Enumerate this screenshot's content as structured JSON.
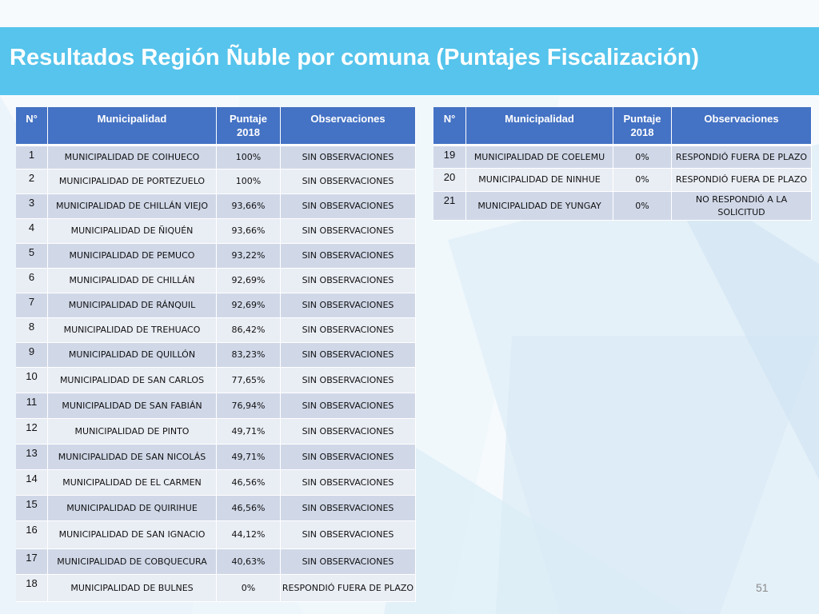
{
  "slide": {
    "title": "Resultados Región Ñuble por comuna (Puntajes Fiscalización)",
    "page_number": "51"
  },
  "left_table": {
    "headers": {
      "n": "N°",
      "municipalidad": "Municipalidad",
      "puntaje": "Puntaje 2018",
      "observaciones": "Observaciones"
    },
    "rows": [
      {
        "n": "1",
        "municipalidad": "MUNICIPALIDAD DE COIHUECO",
        "puntaje": "100%",
        "observaciones": "SIN OBSERVACIONES"
      },
      {
        "n": "2",
        "municipalidad": "MUNICIPALIDAD DE PORTEZUELO",
        "puntaje": "100%",
        "observaciones": "SIN OBSERVACIONES"
      },
      {
        "n": "3",
        "municipalidad": "MUNICIPALIDAD DE CHILLÁN VIEJO",
        "puntaje": "93,66%",
        "observaciones": "SIN OBSERVACIONES"
      },
      {
        "n": "4",
        "municipalidad": "MUNICIPALIDAD DE ÑIQUÉN",
        "puntaje": "93,66%",
        "observaciones": "SIN OBSERVACIONES"
      },
      {
        "n": "5",
        "municipalidad": "MUNICIPALIDAD DE PEMUCO",
        "puntaje": "93,22%",
        "observaciones": "SIN OBSERVACIONES"
      },
      {
        "n": "6",
        "municipalidad": "MUNICIPALIDAD DE CHILLÁN",
        "puntaje": "92,69%",
        "observaciones": "SIN OBSERVACIONES"
      },
      {
        "n": "7",
        "municipalidad": "MUNICIPALIDAD DE RÁNQUIL",
        "puntaje": "92,69%",
        "observaciones": "SIN OBSERVACIONES"
      },
      {
        "n": "8",
        "municipalidad": "MUNICIPALIDAD DE TREHUACO",
        "puntaje": "86,42%",
        "observaciones": "SIN OBSERVACIONES"
      },
      {
        "n": "9",
        "municipalidad": "MUNICIPALIDAD DE QUILLÓN",
        "puntaje": "83,23%",
        "observaciones": "SIN OBSERVACIONES"
      },
      {
        "n": "10",
        "municipalidad": "MUNICIPALIDAD DE SAN CARLOS",
        "puntaje": "77,65%",
        "observaciones": "SIN OBSERVACIONES"
      },
      {
        "n": "11",
        "municipalidad": "MUNICIPALIDAD DE SAN FABIÁN",
        "puntaje": "76,94%",
        "observaciones": "SIN OBSERVACIONES"
      },
      {
        "n": "12",
        "municipalidad": "MUNICIPALIDAD DE PINTO",
        "puntaje": "49,71%",
        "observaciones": "SIN OBSERVACIONES"
      },
      {
        "n": "13",
        "municipalidad": "MUNICIPALIDAD DE SAN NICOLÁS",
        "puntaje": "49,71%",
        "observaciones": "SIN OBSERVACIONES"
      },
      {
        "n": "14",
        "municipalidad": "MUNICIPALIDAD DE EL CARMEN",
        "puntaje": "46,56%",
        "observaciones": "SIN OBSERVACIONES"
      },
      {
        "n": "15",
        "municipalidad": "MUNICIPALIDAD DE QUIRIHUE",
        "puntaje": "46,56%",
        "observaciones": "SIN OBSERVACIONES"
      },
      {
        "n": "16",
        "municipalidad": "MUNICIPALIDAD DE SAN IGNACIO",
        "puntaje": "44,12%",
        "observaciones": "SIN OBSERVACIONES"
      },
      {
        "n": "17",
        "municipalidad": "MUNICIPALIDAD DE COBQUECURA",
        "puntaje": "40,63%",
        "observaciones": "SIN OBSERVACIONES"
      },
      {
        "n": "18",
        "municipalidad": "MUNICIPALIDAD DE BULNES",
        "puntaje": "0%",
        "observaciones": "RESPONDIÓ FUERA DE PLAZO"
      }
    ]
  },
  "right_table": {
    "headers": {
      "n": "N°",
      "municipalidad": "Municipalidad",
      "puntaje": "Puntaje 2018",
      "observaciones": "Observaciones"
    },
    "rows": [
      {
        "n": "19",
        "municipalidad": "MUNICIPALIDAD DE COELEMU",
        "puntaje": "0%",
        "observaciones": "RESPONDIÓ FUERA DE PLAZO"
      },
      {
        "n": "20",
        "municipalidad": "MUNICIPALIDAD DE NINHUE",
        "puntaje": "0%",
        "observaciones": "RESPONDIÓ FUERA DE PLAZO"
      },
      {
        "n": "21",
        "municipalidad": "MUNICIPALIDAD DE YUNGAY",
        "puntaje": "0%",
        "observaciones": "NO RESPONDIÓ A LA SOLICITUD"
      }
    ]
  }
}
